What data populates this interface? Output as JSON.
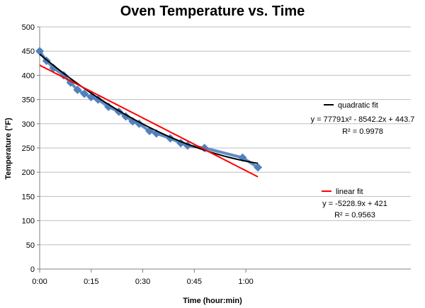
{
  "chart_data": {
    "type": "scatter",
    "title": "Oven Temperature vs. Time",
    "xlabel": "Time (hour:min)",
    "ylabel": "Temperature (°F)",
    "xlim": [
      0,
      0.075
    ],
    "ylim": [
      0,
      500
    ],
    "x_unit": "days",
    "xticks": [
      {
        "value": 0,
        "label": "0:00"
      },
      {
        "value": 0.0104167,
        "label": "0:15"
      },
      {
        "value": 0.0208333,
        "label": "0:30"
      },
      {
        "value": 0.03125,
        "label": "0:45"
      },
      {
        "value": 0.0416667,
        "label": "1:00"
      }
    ],
    "yticks": [
      0,
      50,
      100,
      150,
      200,
      250,
      300,
      350,
      400,
      450,
      500
    ],
    "grid": {
      "horizontal": true,
      "vertical": false
    },
    "series": [
      {
        "color": "#4f81bd",
        "marker": "diamond",
        "x": [
          0,
          0.00139,
          0.00278,
          0.00486,
          0.00625,
          0.00764,
          0.00903,
          0.0104,
          0.0118,
          0.0139,
          0.016,
          0.0174,
          0.0188,
          0.0201,
          0.0222,
          0.0236,
          0.0264,
          0.0285,
          0.0299,
          0.0333,
          0.041,
          0.0441
        ],
        "y": [
          450,
          430,
          415,
          400,
          385,
          370,
          362,
          355,
          350,
          335,
          325,
          315,
          305,
          300,
          285,
          280,
          270,
          260,
          255,
          250,
          230,
          210
        ]
      }
    ],
    "fits": [
      {
        "name": "quadratic fit",
        "type": "quadratic",
        "color": "#000000",
        "coefficients": [
          77791,
          -8542.2,
          443.7
        ],
        "equation": "y = 77791x² - 8542.2x + 443.7",
        "r2": "R² = 0.9978"
      },
      {
        "name": "linear fit",
        "type": "linear",
        "color": "#ff0000",
        "coefficients": [
          -5228.9,
          421
        ],
        "equation": "y = -5228.9x + 421",
        "r2": "R² = 0.9563"
      }
    ]
  }
}
